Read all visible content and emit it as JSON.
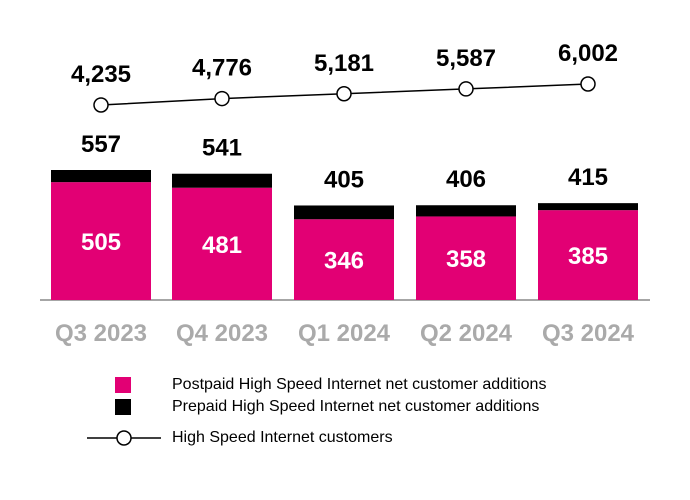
{
  "chart_data": {
    "type": "bar",
    "stacked": true,
    "categories": [
      "Q3 2023",
      "Q4 2023",
      "Q1 2024",
      "Q2 2024",
      "Q3 2024"
    ],
    "series": [
      {
        "name": "Postpaid High Speed Internet net customer additions",
        "type": "bar",
        "values": [
          505,
          481,
          346,
          358,
          385
        ],
        "color": "#E20074"
      },
      {
        "name": "Prepaid High Speed Internet net customer additions",
        "type": "bar",
        "values": [
          52,
          60,
          59,
          48,
          30
        ],
        "color": "#000000"
      },
      {
        "name": "High Speed Internet customers",
        "type": "line",
        "values": [
          4235,
          4776,
          5181,
          5587,
          6002
        ],
        "color": "#000000"
      }
    ],
    "totals": [
      557,
      541,
      405,
      406,
      415
    ],
    "total_labels": [
      "557",
      "541",
      "405",
      "406",
      "415"
    ],
    "postpaid_labels": [
      "505",
      "481",
      "346",
      "358",
      "385"
    ],
    "line_labels": [
      "4,235",
      "4,776",
      "5,181",
      "5,587",
      "6,002"
    ],
    "legend_placement": "bottom",
    "grid": false,
    "axis_label_color": "#AAAAAA"
  }
}
